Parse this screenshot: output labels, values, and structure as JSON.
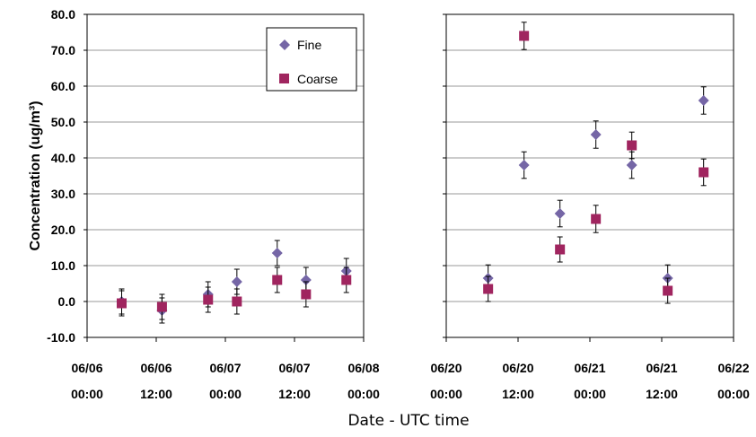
{
  "colors": {
    "fine": "#7566a6",
    "coarse": "#a0255f"
  },
  "chart_data": {
    "type": "scatter",
    "ylabel": "Concentration (ug/m³)",
    "xlabel": "Date - UTC time",
    "ylim": [
      -10,
      80
    ],
    "yticks": [
      "80.0",
      "70.0",
      "60.0",
      "50.0",
      "40.0",
      "30.0",
      "20.0",
      "10.0",
      "0.0",
      "-10.0"
    ],
    "grid": true,
    "legend": {
      "placement": "top-right of left panel",
      "entries": [
        "Fine",
        "Coarse"
      ]
    },
    "panels": [
      {
        "xticks": [
          {
            "date": "06/06",
            "time": "00:00"
          },
          {
            "date": "06/06",
            "time": "12:00"
          },
          {
            "date": "06/07",
            "time": "00:00"
          },
          {
            "date": "06/07",
            "time": "12:00"
          },
          {
            "date": "06/08",
            "time": "00:00"
          }
        ],
        "series": [
          {
            "name": "Fine",
            "x": [
              "06/06 06:00",
              "06/06 13:00",
              "06/06 21:00",
              "06/07 02:00",
              "06/07 09:00",
              "06/07 14:00",
              "06/07 21:00"
            ],
            "y": [
              0.0,
              -2.5,
              2.0,
              5.5,
              13.5,
              6.0,
              8.5
            ],
            "err": [
              3.5,
              3.5,
              3.5,
              3.5,
              3.5,
              3.5,
              3.5
            ]
          },
          {
            "name": "Coarse",
            "x": [
              "06/06 06:00",
              "06/06 13:00",
              "06/06 21:00",
              "06/07 02:00",
              "06/07 09:00",
              "06/07 14:00",
              "06/07 21:00"
            ],
            "y": [
              -0.5,
              -1.5,
              0.5,
              0.0,
              6.0,
              2.0,
              6.0
            ],
            "err": [
              3.5,
              3.5,
              3.5,
              3.5,
              3.5,
              3.5,
              3.5
            ]
          }
        ]
      },
      {
        "xticks": [
          {
            "date": "06/20",
            "time": "00:00"
          },
          {
            "date": "06/20",
            "time": "12:00"
          },
          {
            "date": "06/21",
            "time": "00:00"
          },
          {
            "date": "06/21",
            "time": "12:00"
          },
          {
            "date": "06/22",
            "time": "00:00"
          }
        ],
        "series": [
          {
            "name": "Fine",
            "x": [
              "06/20 07:00",
              "06/20 13:00",
              "06/20 19:00",
              "06/21 01:00",
              "06/21 07:00",
              "06/21 13:00",
              "06/21 19:00"
            ],
            "y": [
              6.5,
              38.0,
              24.5,
              46.5,
              38.0,
              6.5,
              56.0
            ],
            "err": [
              3.7,
              3.7,
              3.7,
              3.8,
              3.7,
              3.7,
              3.8
            ]
          },
          {
            "name": "Coarse",
            "x": [
              "06/20 07:00",
              "06/20 13:00",
              "06/20 19:00",
              "06/21 01:00",
              "06/21 07:00",
              "06/21 13:00",
              "06/21 19:00"
            ],
            "y": [
              3.5,
              74.0,
              14.5,
              23.0,
              43.5,
              3.0,
              36.0
            ],
            "err": [
              3.5,
              3.8,
              3.5,
              3.8,
              3.7,
              3.5,
              3.7
            ]
          }
        ]
      }
    ]
  }
}
